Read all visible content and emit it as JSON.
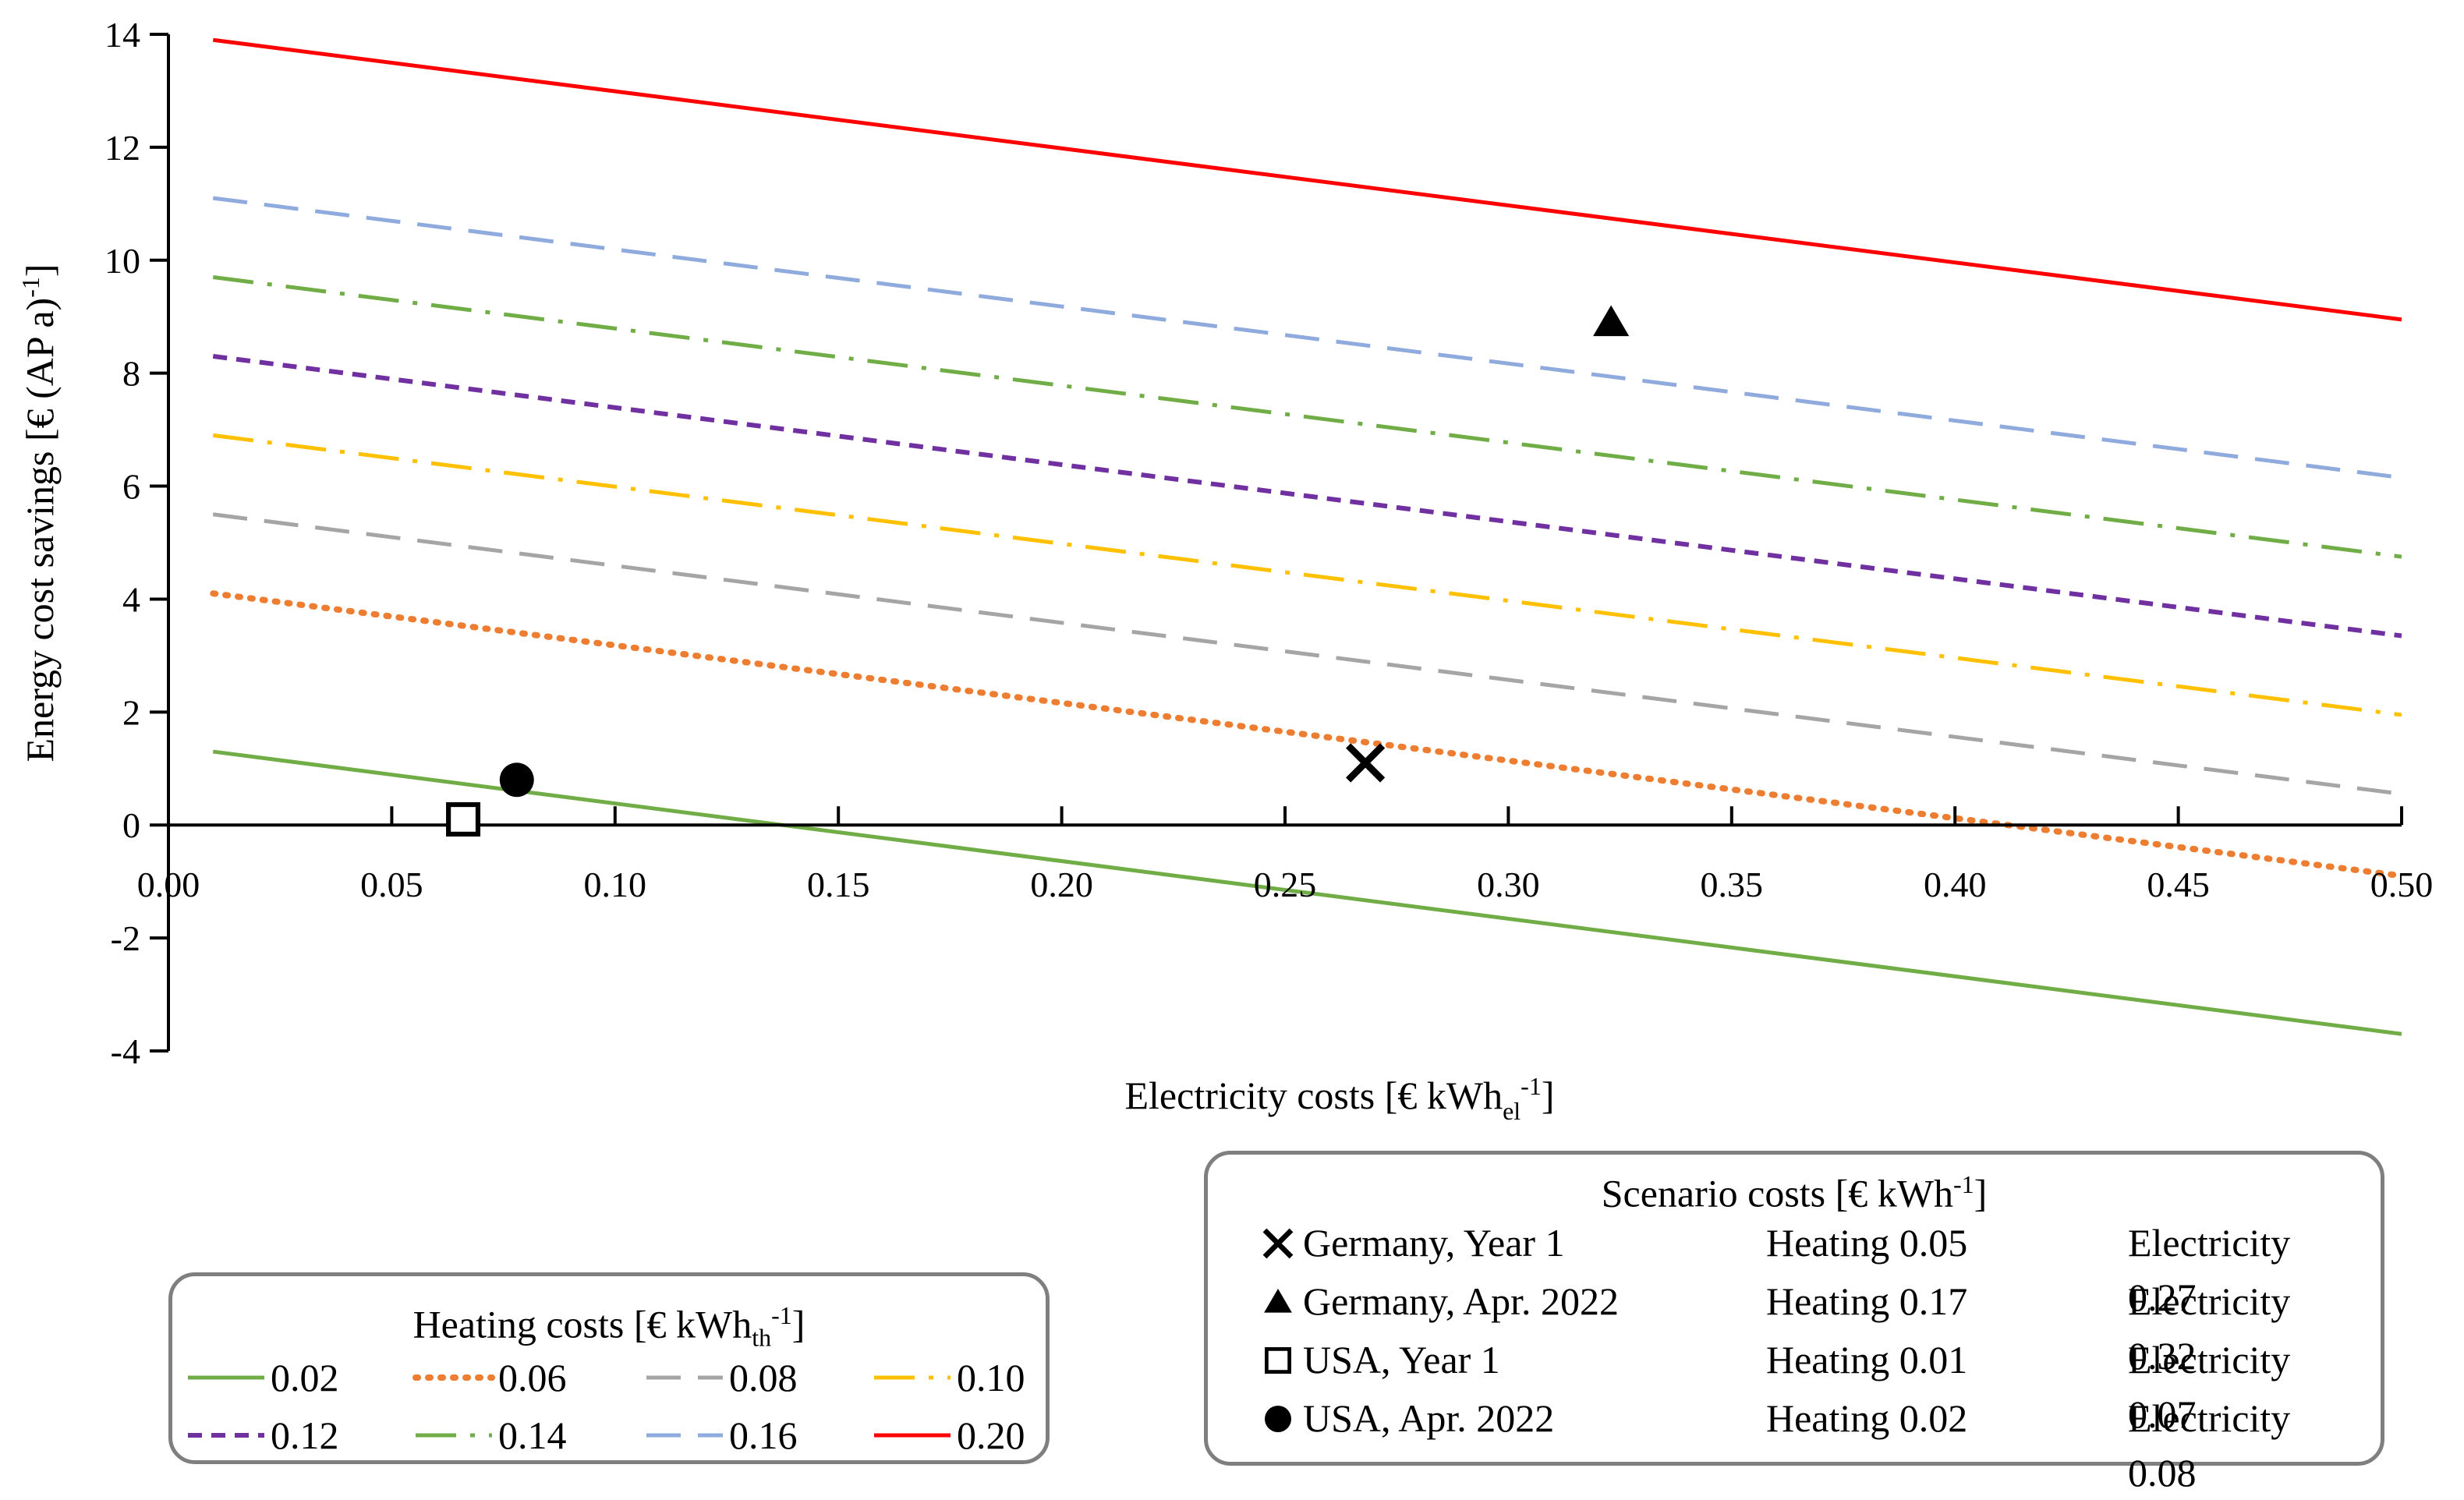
{
  "chart_data": {
    "type": "line",
    "xlabel": "Electricity costs [€ kWh",
    "xlabel_sub": "el",
    "xlabel_sup": "-1",
    "xlabel_end": "]",
    "ylabel": "Energy cost savings [€ (AP a)",
    "ylabel_sup": "-1",
    "ylabel_end": "]",
    "xlim": [
      0.0,
      0.5
    ],
    "ylim": [
      -4,
      14
    ],
    "x_ticks": [
      "0.00",
      "0.05",
      "0.10",
      "0.15",
      "0.20",
      "0.25",
      "0.30",
      "0.35",
      "0.40",
      "0.45",
      "0.50"
    ],
    "x_tick_values": [
      0.0,
      0.05,
      0.1,
      0.15,
      0.2,
      0.25,
      0.3,
      0.35,
      0.4,
      0.45,
      0.5
    ],
    "y_ticks": [
      "-4",
      "-2",
      "0",
      "2",
      "4",
      "6",
      "8",
      "10",
      "12",
      "14"
    ],
    "y_tick_values": [
      -4,
      -2,
      0,
      2,
      4,
      6,
      8,
      10,
      12,
      14
    ],
    "grid": false,
    "series": [
      {
        "name": "0.02",
        "color": "#70ad47",
        "style": "solid",
        "x": [
          0.01,
          0.5
        ],
        "y": [
          1.3,
          -3.7
        ]
      },
      {
        "name": "0.06",
        "color": "#ed7d31",
        "style": "dotted",
        "x": [
          0.01,
          0.5
        ],
        "y": [
          4.1,
          -0.9
        ]
      },
      {
        "name": "0.08",
        "color": "#a5a5a5",
        "style": "dashed",
        "x": [
          0.01,
          0.5
        ],
        "y": [
          5.5,
          0.55
        ]
      },
      {
        "name": "0.10",
        "color": "#ffc000",
        "style": "dashdot",
        "x": [
          0.01,
          0.5
        ],
        "y": [
          6.9,
          1.95
        ]
      },
      {
        "name": "0.12",
        "color": "#7030a0",
        "style": "shortdash",
        "x": [
          0.01,
          0.5
        ],
        "y": [
          8.3,
          3.35
        ]
      },
      {
        "name": "0.14",
        "color": "#70ad47",
        "style": "dashdot",
        "x": [
          0.01,
          0.5
        ],
        "y": [
          9.7,
          4.75
        ]
      },
      {
        "name": "0.16",
        "color": "#8faadc",
        "style": "dashed",
        "x": [
          0.01,
          0.5
        ],
        "y": [
          11.1,
          6.15
        ]
      },
      {
        "name": "0.20",
        "color": "#ff0000",
        "style": "solid",
        "x": [
          0.01,
          0.5
        ],
        "y": [
          13.9,
          8.95
        ]
      }
    ],
    "scenarios": [
      {
        "name": "Germany, Year 1",
        "marker": "x",
        "heating_label": "Heating 0.05",
        "electricity_label": "Electricity 0.27",
        "x": 0.268,
        "y": 1.1
      },
      {
        "name": "Germany, Apr. 2022",
        "marker": "triangle",
        "heating_label": "Heating 0.17",
        "electricity_label": "Electricity 0.32",
        "x": 0.323,
        "y": 8.9
      },
      {
        "name": "USA, Year 1",
        "marker": "square",
        "heating_label": "Heating 0.01",
        "electricity_label": "Electricity 0.07",
        "x": 0.066,
        "y": 0.1
      },
      {
        "name": "USA, Apr. 2022",
        "marker": "circle",
        "heating_label": "Heating 0.02",
        "electricity_label": "Electricity 0.08",
        "x": 0.078,
        "y": 0.8
      }
    ],
    "heating_legend_title": "Heating costs [€ kWh",
    "heating_legend_sub": "th",
    "heating_legend_sup": "-1",
    "heating_legend_end": "]",
    "scenario_legend_title": "Scenario costs [€ kWh",
    "scenario_legend_sup": "-1",
    "scenario_legend_end": "]"
  }
}
